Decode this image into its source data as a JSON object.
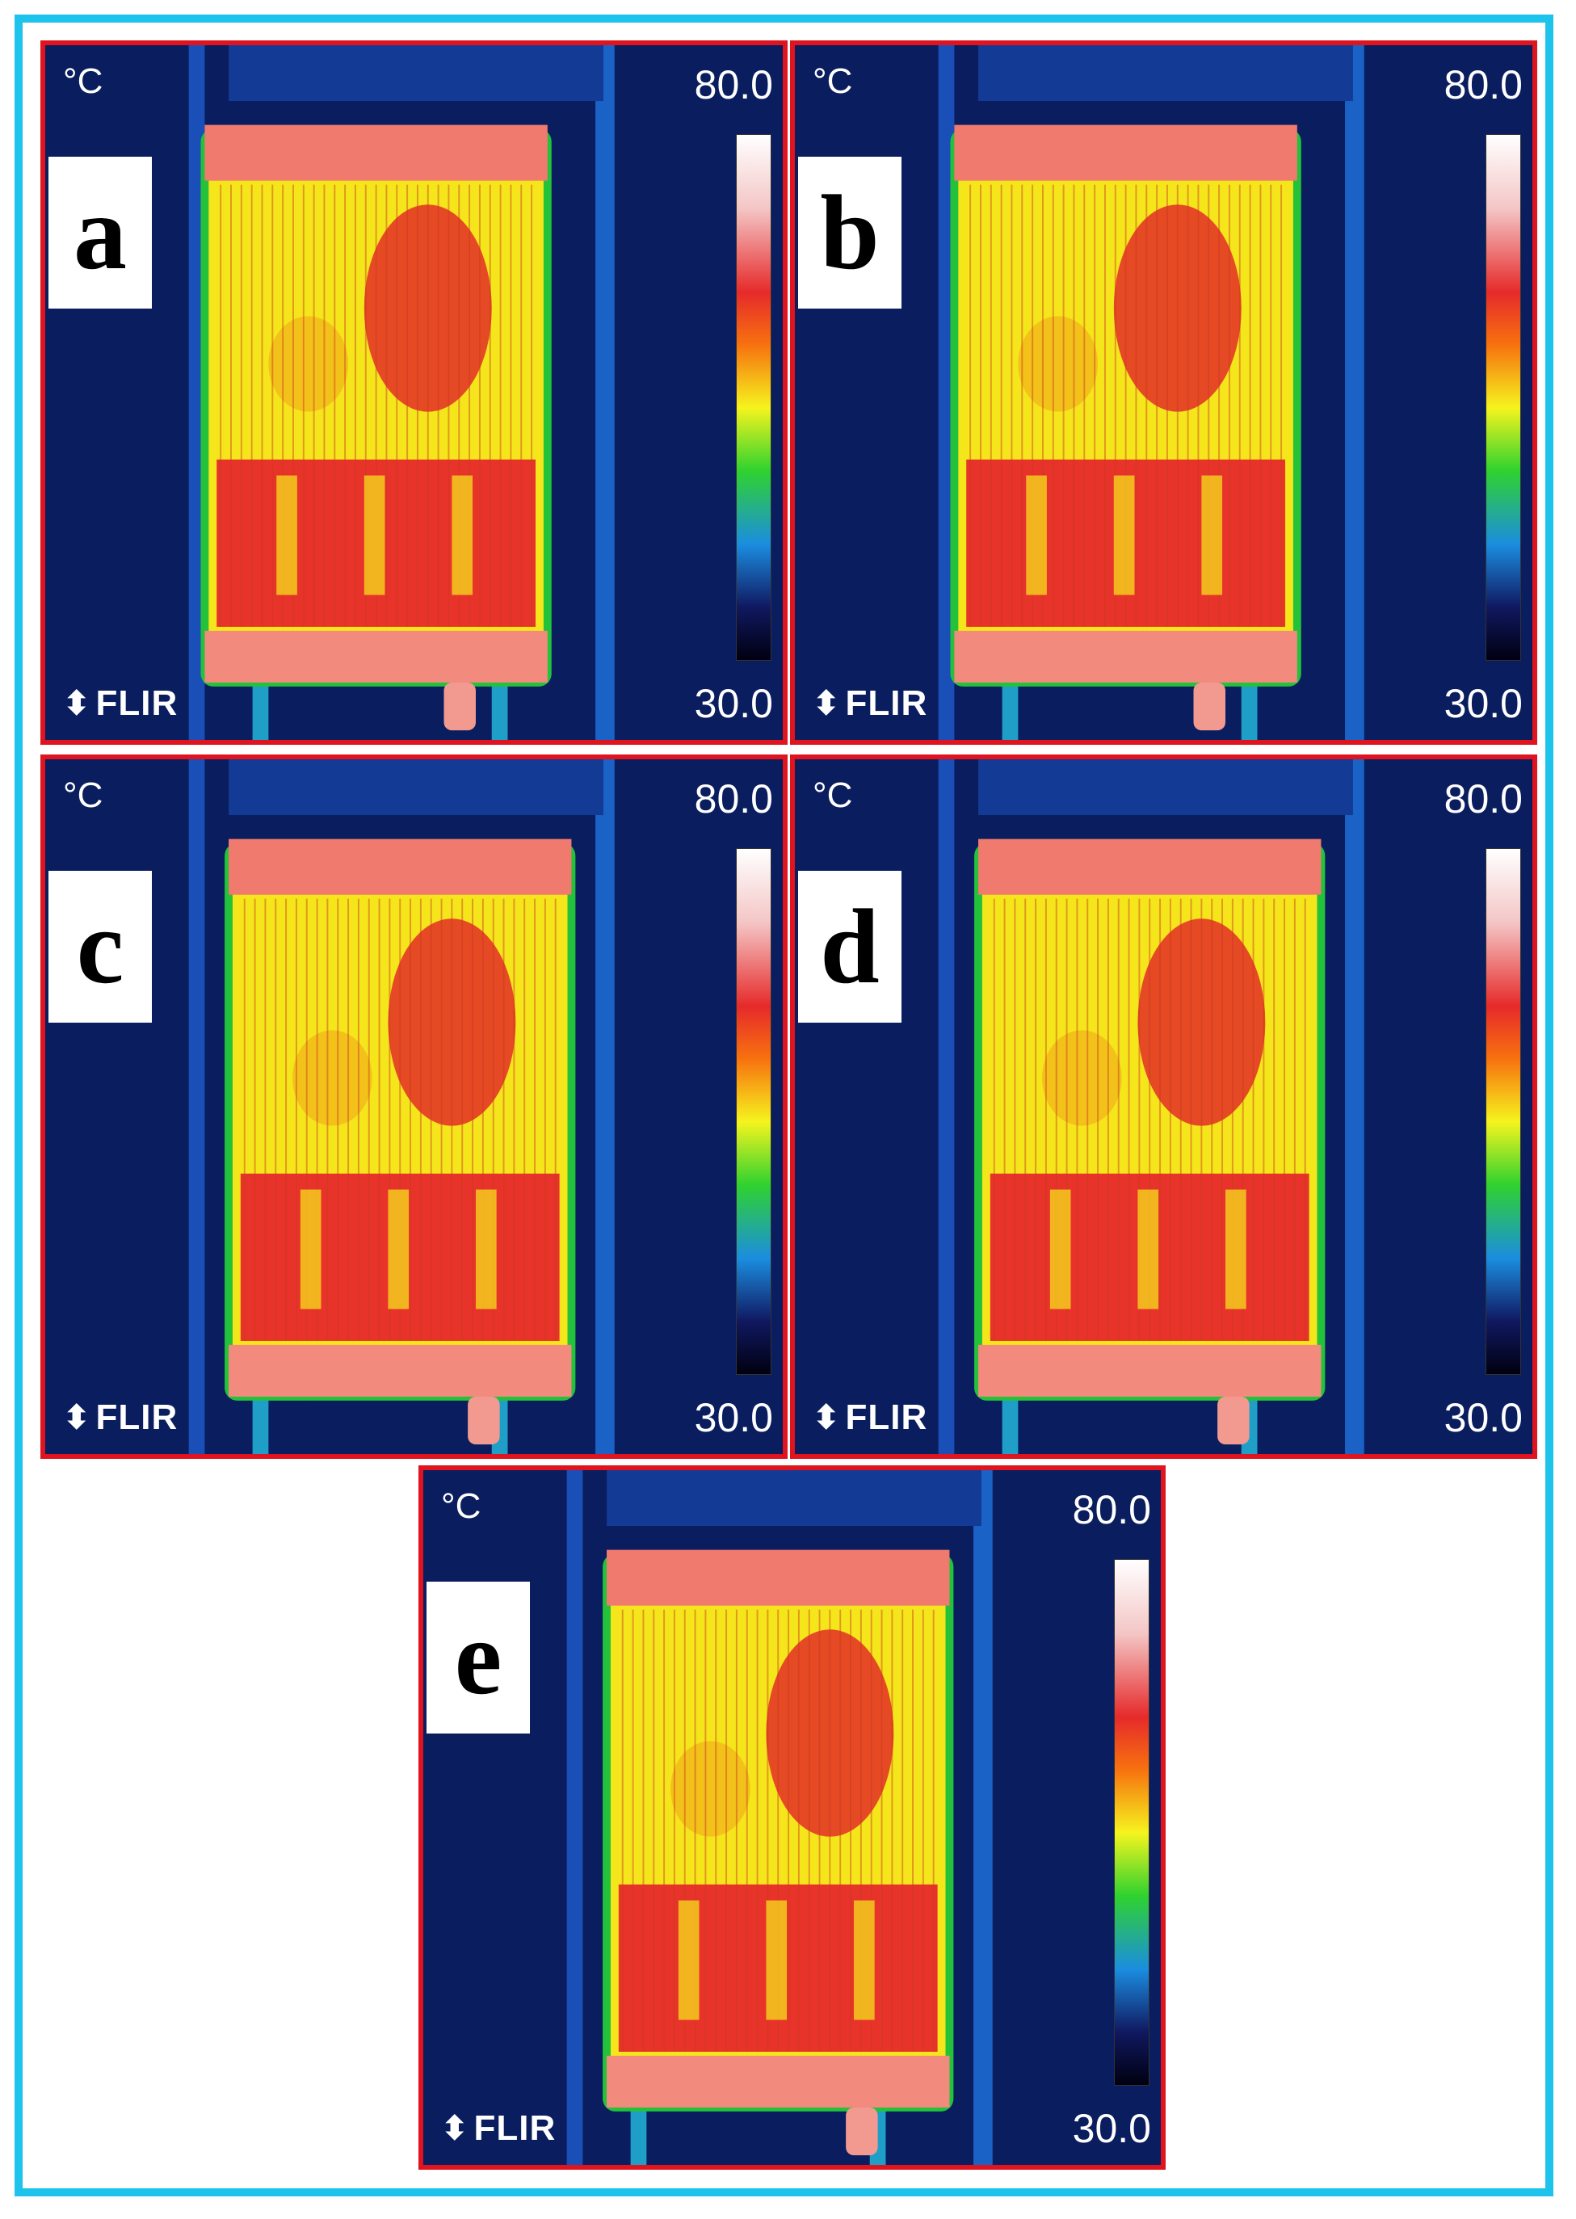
{
  "panels": [
    {
      "label": "a",
      "unit": "°C",
      "max": "80.0",
      "min": "30.0",
      "brand": "FLIR"
    },
    {
      "label": "b",
      "unit": "°C",
      "max": "80.0",
      "min": "30.0",
      "brand": "FLIR"
    },
    {
      "label": "c",
      "unit": "°C",
      "max": "80.0",
      "min": "30.0",
      "brand": "FLIR"
    },
    {
      "label": "d",
      "unit": "°C",
      "max": "80.0",
      "min": "30.0",
      "brand": "FLIR"
    },
    {
      "label": "e",
      "unit": "°C",
      "max": "80.0",
      "min": "30.0",
      "brand": "FLIR"
    }
  ],
  "colors": {
    "outer_border": "#1ec3ec",
    "panel_border": "#e0141e",
    "background_cold": "#081a58",
    "radiator_hot": "#e62a2a",
    "radiator_warm": "#f5f41e"
  },
  "brand_icon": "flir-logo-icon"
}
